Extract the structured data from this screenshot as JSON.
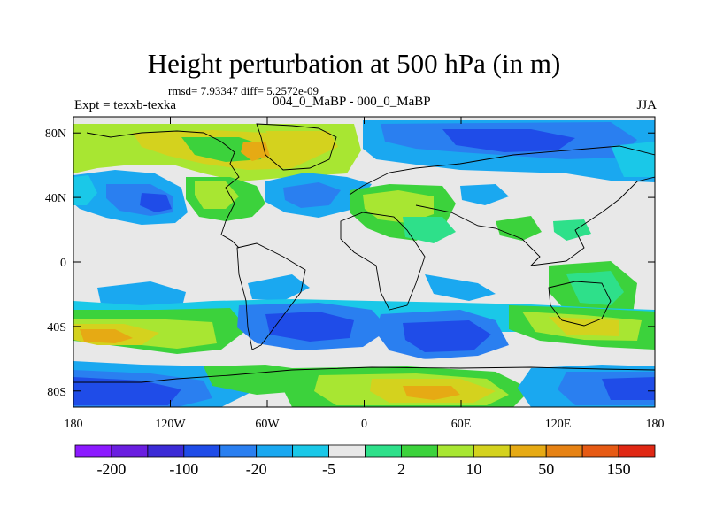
{
  "title": "Height perturbation at 500 hPa (in m)",
  "stats": "rmsd= 7.93347 diff= 5.2572e-09",
  "left_label": "Expt = texxb-texka",
  "center_label": "004_0_MaBP - 000_0_MaBP",
  "right_label": "JJA",
  "axes": {
    "x_ticks": [
      {
        "value": -180,
        "label": "180"
      },
      {
        "value": -120,
        "label": "120W"
      },
      {
        "value": -60,
        "label": "60W"
      },
      {
        "value": 0,
        "label": "0"
      },
      {
        "value": 60,
        "label": "60E"
      },
      {
        "value": 120,
        "label": "120E"
      },
      {
        "value": 180,
        "label": "180"
      }
    ],
    "y_ticks": [
      {
        "value": 80,
        "label": "80N"
      },
      {
        "value": 40,
        "label": "40N"
      },
      {
        "value": 0,
        "label": "0"
      },
      {
        "value": -40,
        "label": "40S"
      },
      {
        "value": -80,
        "label": "80S"
      }
    ],
    "lon_range": [
      -180,
      180
    ],
    "lat_range": [
      -90,
      90
    ]
  },
  "colorbar": {
    "colors": [
      "#8c1aff",
      "#6a1ee0",
      "#3c2bd6",
      "#1f4ce8",
      "#2a7ff0",
      "#1aa8f0",
      "#1ac8e8",
      "#e8e8e8",
      "#2ee08a",
      "#3cd23c",
      "#a8e632",
      "#d4d21e",
      "#e6aa14",
      "#e68214",
      "#e65a14",
      "#e02814"
    ],
    "labels": [
      {
        "boundary": 1,
        "text": "-200"
      },
      {
        "boundary": 3,
        "text": "-100"
      },
      {
        "boundary": 5,
        "text": "-20"
      },
      {
        "boundary": 7,
        "text": "-5"
      },
      {
        "boundary": 9,
        "text": "2"
      },
      {
        "boundary": 11,
        "text": "10"
      },
      {
        "boundary": 13,
        "text": "50"
      },
      {
        "boundary": 15,
        "text": "150"
      }
    ]
  }
}
